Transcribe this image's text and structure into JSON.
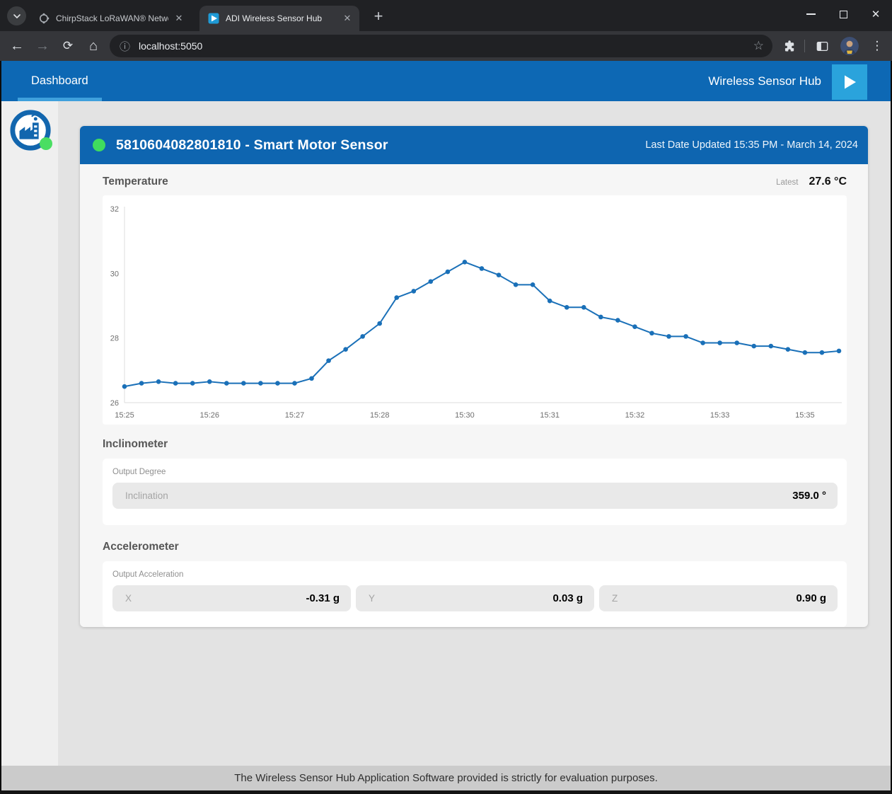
{
  "browser": {
    "tabs": [
      {
        "title": "ChirpStack LoRaWAN® Network",
        "active": false
      },
      {
        "title": "ADI Wireless Sensor Hub",
        "active": true
      }
    ],
    "url": "localhost:5050"
  },
  "icons": {
    "close": "✕",
    "new_tab": "+",
    "back": "←",
    "forward": "→",
    "reload": "⟳",
    "home": "⌂",
    "info": "ⓘ",
    "star": "☆",
    "menu": "⋮"
  },
  "navbar": {
    "menu_label": "Dashboard",
    "app_title": "Wireless Sensor Hub"
  },
  "device": {
    "header_title": "5810604082801810 - Smart Motor Sensor",
    "last_updated": "Last Date Updated 15:35 PM - March 14, 2024"
  },
  "temperature": {
    "section_label": "Temperature",
    "latest_label": "Latest",
    "latest_value": "27.6 °C"
  },
  "chart_data": {
    "type": "line",
    "title": "Temperature",
    "ylabel": "",
    "xlabel": "",
    "ylim": [
      26,
      32
    ],
    "yticks": [
      26,
      28,
      30,
      32
    ],
    "x_labels": [
      "15:25",
      "15:26",
      "15:27",
      "15:28",
      "15:30",
      "15:31",
      "15:32",
      "15:33",
      "15:35"
    ],
    "label_every": 5,
    "values": [
      26.5,
      26.6,
      26.65,
      26.6,
      26.6,
      26.65,
      26.6,
      26.6,
      26.6,
      26.6,
      26.6,
      26.75,
      27.3,
      27.65,
      28.05,
      28.45,
      29.25,
      29.45,
      29.75,
      30.05,
      30.35,
      30.15,
      29.95,
      29.65,
      29.65,
      29.15,
      28.95,
      28.95,
      28.65,
      28.55,
      28.35,
      28.15,
      28.05,
      28.05,
      27.85,
      27.85,
      27.85,
      27.75,
      27.75,
      27.65,
      27.55,
      27.55,
      27.6
    ],
    "line_color": "#1a70b8",
    "grid": false,
    "legend": false
  },
  "inclinometer": {
    "section_label": "Inclinometer",
    "group_label": "Output Degree",
    "fields": [
      {
        "label": "Inclination",
        "value": "359.0 °"
      }
    ]
  },
  "accelerometer": {
    "section_label": "Accelerometer",
    "group_label": "Output Acceleration",
    "fields": [
      {
        "label": "X",
        "value": "-0.31 g"
      },
      {
        "label": "Y",
        "value": "0.03 g"
      },
      {
        "label": "Z",
        "value": "0.90 g"
      }
    ]
  },
  "footer": {
    "text": "The Wireless Sensor Hub Application Software provided is strictly for evaluation purposes."
  },
  "colors": {
    "navbar_blue": "#0d68b4",
    "header_blue": "#0e65b0",
    "accent_light_blue": "#2aa3dc",
    "underline_blue": "#3fa0dc",
    "status_green": "#3fdc5e",
    "chart_line": "#1a70b8"
  }
}
